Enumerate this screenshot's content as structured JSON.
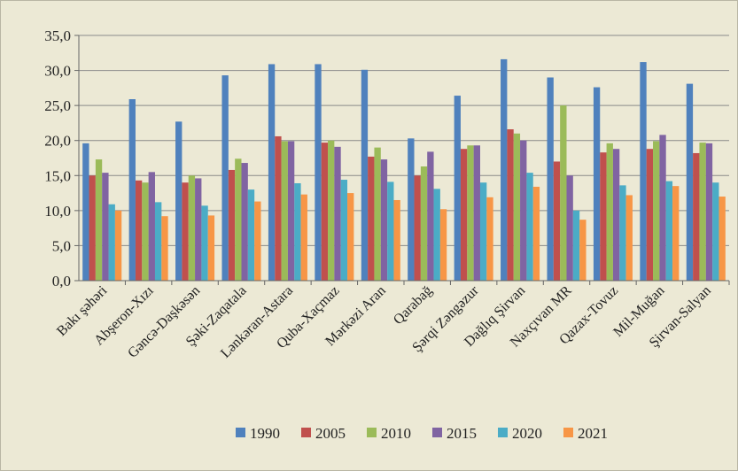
{
  "chart_data": {
    "type": "bar",
    "title": "",
    "xlabel": "",
    "ylabel": "",
    "ylim": [
      0,
      35
    ],
    "y_ticks": [
      "0,0",
      "5,0",
      "10,0",
      "15,0",
      "20,0",
      "25,0",
      "30,0",
      "35,0"
    ],
    "grid": "horizontal",
    "legend_position": "bottom",
    "categories": [
      "Bakı şəhəri",
      "Abşeron-Xızı",
      "Gəncə-Daşkəsən",
      "Şəki-Zaqatala",
      "Lənkəran-Astara",
      "Quba-Xaçmaz",
      "Mərkəzi Aran",
      "Qarabağ",
      "Şərqi Zəngəzur",
      "Dağlıq Şirvan",
      "Naxçıvan MR",
      "Qazax-Tovuz",
      "Mil-Muğan",
      "Şirvan-Salyan"
    ],
    "series": [
      {
        "name": "1990",
        "color": "#4f81bd",
        "values": [
          19.6,
          25.9,
          22.7,
          29.3,
          30.9,
          30.9,
          30.1,
          20.3,
          26.4,
          31.6,
          29.0,
          27.6,
          31.2,
          28.1
        ]
      },
      {
        "name": "2005",
        "color": "#c0504d",
        "values": [
          15.0,
          14.3,
          14.0,
          15.8,
          20.6,
          19.7,
          17.7,
          15.0,
          18.8,
          21.6,
          17.0,
          18.3,
          18.8,
          18.2
        ]
      },
      {
        "name": "2010",
        "color": "#9bbb59",
        "values": [
          17.3,
          14.0,
          15.0,
          17.4,
          19.9,
          20.0,
          19.0,
          16.3,
          19.3,
          21.0,
          25.0,
          19.6,
          19.9,
          19.7
        ]
      },
      {
        "name": "2015",
        "color": "#8064a2",
        "values": [
          15.4,
          15.5,
          14.6,
          16.8,
          19.9,
          19.1,
          17.3,
          18.4,
          19.3,
          20.0,
          15.0,
          18.8,
          20.8,
          19.6
        ]
      },
      {
        "name": "2020",
        "color": "#4bacc6",
        "values": [
          10.9,
          11.2,
          10.7,
          13.0,
          13.9,
          14.4,
          14.1,
          13.1,
          14.0,
          15.4,
          10.0,
          13.6,
          14.2,
          14.0
        ]
      },
      {
        "name": "2021",
        "color": "#f79646",
        "values": [
          10.0,
          9.2,
          9.3,
          11.3,
          12.3,
          12.5,
          11.5,
          10.2,
          11.9,
          13.4,
          8.7,
          12.2,
          13.5,
          12.0
        ]
      }
    ]
  }
}
